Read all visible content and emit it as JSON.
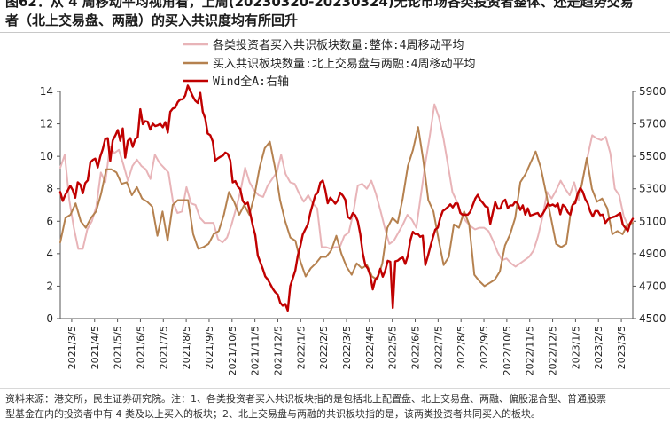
{
  "header": {
    "title_line1": "图62：从 4 周移动平均视角看，上周(20230320-20230324)无论市场各类投资者整体、还是趋势交易",
    "title_line2": "者（北上交易盘、两融）的买入共识度均有所回升"
  },
  "footer": {
    "line1": "资料来源：港交所，民生证券研究院。注：1、各类投资者买入共识板块指的是包括北上配置盘、北上交易盘、两融、偏股混合型、普通股票",
    "line2": "型基金在内的投资者中有 4 类及以上买入的板块；2、北上交易盘与两融的共识板块指的是，该两类投资者共同买入的板块。"
  },
  "chart_data": {
    "type": "line",
    "x_labels": [
      "2021/3/5",
      "2021/4/5",
      "2021/5/5",
      "2021/6/5",
      "2021/7/5",
      "2021/8/5",
      "2021/9/5",
      "2021/10/5",
      "2021/11/5",
      "2021/12/5",
      "2022/1/5",
      "2022/2/5",
      "2022/3/5",
      "2022/4/5",
      "2022/5/5",
      "2022/6/5",
      "2022/7/5",
      "2022/8/5",
      "2022/9/5",
      "2022/10/5",
      "2022/11/5",
      "2022/12/5",
      "2023/1/5",
      "2023/2/5",
      "2023/3/5"
    ],
    "y_left": {
      "min": 0,
      "max": 14,
      "ticks": [
        0,
        2,
        4,
        6,
        8,
        10,
        12,
        14
      ]
    },
    "y_right": {
      "min": 4500,
      "max": 5900,
      "ticks": [
        4500,
        4700,
        4900,
        5100,
        5300,
        5500,
        5700,
        5900
      ]
    },
    "legend_position": "top",
    "series": [
      {
        "name": "各类投资者买入共识板块数量:整体:4周移动平均",
        "axis": "left",
        "color": "#e8b4b8",
        "width": 2,
        "values": [
          9.3,
          10.1,
          7.3,
          5.6,
          4.3,
          4.3,
          5.5,
          6.0,
          6.9,
          9.0,
          8.4,
          10.6,
          10.2,
          10.4,
          9.5,
          8.5,
          9.4,
          9.8,
          9.4,
          9.2,
          8.6,
          10.1,
          9.6,
          9.3,
          9.0,
          7.2,
          6.5,
          6.6,
          8.1,
          7.1,
          7.0,
          6.2,
          5.9,
          5.9,
          5.9,
          4.9,
          4.7,
          5.0,
          5.8,
          6.8,
          7.9,
          9.3,
          8.4,
          7.9,
          7.6,
          7.5,
          8.2,
          8.6,
          9.0,
          10.1,
          8.9,
          8.4,
          8.3,
          7.7,
          7.2,
          7.6,
          7.1,
          6.8,
          4.4,
          4.4,
          4.3,
          4.4,
          4.4,
          5.1,
          5.3,
          6.5,
          8.2,
          8.3,
          8.0,
          8.5,
          7.7,
          6.7,
          5.6,
          4.6,
          4.8,
          5.3,
          5.8,
          6.4,
          6.1,
          5.6,
          7.6,
          9.6,
          11.3,
          13.2,
          12.4,
          11.1,
          9.5,
          7.8,
          7.2,
          6.4,
          6.0,
          5.7,
          5.5,
          5.6,
          5.6,
          5.4,
          4.8,
          4.1,
          3.6,
          3.7,
          3.4,
          3.2,
          3.4,
          3.6,
          3.8,
          4.2,
          5.1,
          6.3,
          7.8,
          7.4,
          7.9,
          8.5,
          8.0,
          7.6,
          8.4,
          7.3,
          8.7,
          10.0,
          11.3,
          11.1,
          11.0,
          11.2,
          10.2,
          8.0,
          7.6,
          6.3,
          5.7,
          6.0
        ]
      },
      {
        "name": "买入共识板块数量:北上交易盘与两融:4周移动平均",
        "axis": "left",
        "color": "#b5814f",
        "width": 2,
        "values": [
          4.7,
          6.2,
          6.4,
          7.1,
          6.0,
          5.6,
          6.2,
          6.6,
          7.7,
          9.2,
          9.2,
          9.0,
          8.3,
          8.4,
          7.6,
          8.1,
          7.4,
          7.2,
          6.9,
          5.1,
          6.6,
          4.8,
          7.0,
          7.3,
          7.3,
          7.3,
          5.2,
          4.3,
          4.4,
          4.6,
          5.2,
          5.4,
          6.4,
          7.8,
          7.2,
          6.4,
          7.0,
          6.4,
          7.6,
          9.3,
          10.5,
          10.9,
          9.3,
          7.3,
          6.0,
          5.0,
          4.8,
          3.5,
          2.6,
          3.1,
          3.4,
          3.8,
          3.8,
          4.2,
          5.1,
          4.0,
          3.2,
          2.7,
          3.4,
          3.1,
          3.3,
          2.6,
          2.4,
          3.4,
          5.6,
          6.2,
          5.9,
          7.4,
          9.4,
          10.4,
          11.8,
          9.8,
          7.3,
          6.6,
          4.9,
          3.3,
          3.8,
          5.8,
          5.6,
          6.6,
          5.8,
          2.7,
          2.3,
          2.0,
          2.2,
          2.4,
          2.9,
          4.5,
          5.2,
          6.2,
          8.4,
          8.9,
          9.6,
          10.3,
          9.3,
          7.8,
          6.2,
          4.6,
          4.4,
          4.6,
          6.9,
          7.4,
          8.2,
          9.9,
          8.0,
          7.2,
          7.4,
          6.8,
          5.2,
          5.4,
          5.2,
          5.8,
          5.9
        ]
      },
      {
        "name": "Wind全A:右轴",
        "axis": "right",
        "color": "#c00000",
        "width": 2.4,
        "values": [
          5280,
          5225,
          5262,
          5290,
          5318,
          5292,
          5245,
          5340,
          5326,
          5272,
          5335,
          5352,
          5462,
          5478,
          5486,
          5432,
          5498,
          5545,
          5608,
          5612,
          5472,
          5598,
          5628,
          5662,
          5596,
          5672,
          5492,
          5595,
          5612,
          5558,
          5606,
          5618,
          5790,
          5698,
          5717,
          5713,
          5665,
          5701,
          5686,
          5691,
          5700,
          5679,
          5711,
          5646,
          5774,
          5794,
          5800,
          5835,
          5851,
          5852,
          5875,
          5936,
          5904,
          5870,
          5843,
          5829,
          5891,
          5775,
          5734,
          5640,
          5630,
          5591,
          5474,
          5487,
          5497,
          5504,
          5523,
          5515,
          5475,
          5339,
          5347,
          5313,
          5298,
          5225,
          5205,
          5214,
          5147,
          5074,
          5015,
          4888,
          4847,
          4807,
          4760,
          4741,
          4712,
          4684,
          4662,
          4648,
          4598,
          4580,
          4590,
          4550,
          4700,
          4748,
          4797,
          4887,
          4945,
          5018,
          5050,
          5080,
          5150,
          5206,
          5260,
          5277,
          5338,
          5351,
          5294,
          5211,
          5245,
          5228,
          5208,
          5228,
          5276,
          5258,
          5232,
          5127,
          5115,
          5150,
          5136,
          5100,
          5021,
          4904,
          4829,
          4809,
          4766,
          4680,
          4740,
          4759,
          4807,
          4758,
          4796,
          4856,
          4850,
          4566,
          4853,
          4857,
          4871,
          4877,
          4837,
          4886,
          4980,
          5035,
          5021,
          5022,
          5004,
          5011,
          4830,
          4882,
          4942,
          4997,
          5048,
          5061,
          5121,
          5163,
          5173,
          5187,
          5204,
          5185,
          5210,
          5208,
          5151,
          5140,
          5141,
          5140,
          5158,
          5200,
          5240,
          5263,
          5231,
          5214,
          5192,
          5186,
          5084,
          5152,
          5218,
          5177,
          5178,
          5220,
          5233,
          5181,
          5198,
          5198,
          5221,
          5208,
          5170,
          5198,
          5141,
          5179,
          5135,
          5140,
          5146,
          5151,
          5126,
          5146,
          5174,
          5208,
          5196,
          5203,
          5192,
          5209,
          5143,
          5201,
          5188,
          5155,
          5140,
          5203,
          5212,
          5272,
          5305,
          5281,
          5236,
          5210,
          5160,
          5129,
          5163,
          5163,
          5137,
          5141,
          5089,
          5110,
          5120,
          5125,
          5130,
          5140,
          5150,
          5080,
          5060,
          5040,
          5090,
          5115
        ]
      }
    ]
  }
}
